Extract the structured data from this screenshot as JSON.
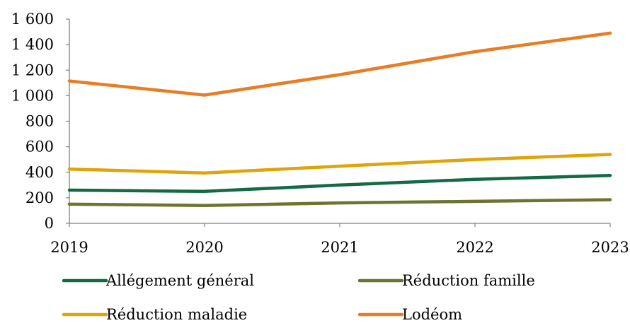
{
  "chart_data": {
    "type": "line",
    "title": "",
    "xlabel": "",
    "ylabel": "",
    "x": [
      "2019",
      "2020",
      "2021",
      "2022",
      "2023"
    ],
    "ylim": [
      0,
      1600
    ],
    "yticks": [
      0,
      200,
      400,
      600,
      800,
      1000,
      1200,
      1400,
      1600
    ],
    "ytick_labels": [
      "0",
      "200",
      "400",
      "600",
      "800",
      "1 000",
      "1 200",
      "1 400",
      "1 600"
    ],
    "grid": false,
    "legend_position": "bottom",
    "series": [
      {
        "name": "Allégement général",
        "color": "#136a45",
        "values": [
          260,
          250,
          300,
          345,
          375
        ]
      },
      {
        "name": "Réduction famille",
        "color": "#6e7430",
        "values": [
          150,
          140,
          160,
          172,
          185
        ]
      },
      {
        "name": "Réduction maladie",
        "color": "#dfa40a",
        "values": [
          425,
          395,
          448,
          500,
          540
        ]
      },
      {
        "name": "Lodéom",
        "color": "#e77d24",
        "values": [
          1115,
          1005,
          1165,
          1345,
          1490
        ]
      }
    ]
  }
}
